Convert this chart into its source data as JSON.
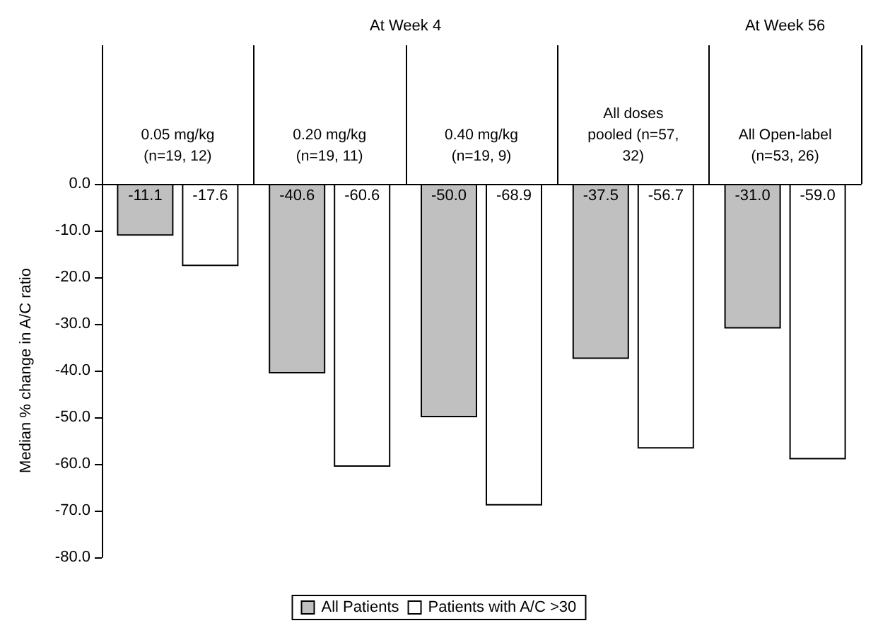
{
  "chart_data": {
    "type": "bar",
    "ylabel": "Median % change in A/C ratio",
    "annotations": [
      "At Week 4",
      "At Week 56"
    ],
    "categories": [
      "0.05 mg/kg\n(n=19, 12)",
      "0.20 mg/kg\n(n=19, 11)",
      "0.40 mg/kg\n(n=19, 9)",
      "All doses\npooled (n=57,\n32)",
      "All Open-label\n(n=53, 26)"
    ],
    "series": [
      {
        "name": "All Patients",
        "color": "#c0c0c0",
        "values": [
          -11.1,
          -40.6,
          -50.0,
          -37.5,
          -31.0
        ],
        "value_labels": [
          "-11.1",
          "-40.6",
          "-50.0",
          "-37.5",
          "-31.0"
        ]
      },
      {
        "name": "Patients with A/C >30",
        "color": "#ffffff",
        "values": [
          -17.6,
          -60.6,
          -68.9,
          -56.7,
          -59.0
        ],
        "value_labels": [
          "-17.6",
          "-60.6",
          "-68.9",
          "-56.7",
          "-59.0"
        ]
      }
    ],
    "ylim": [
      -80,
      0
    ],
    "yticks": [
      {
        "value": 0,
        "label": "0.0"
      },
      {
        "value": -10,
        "label": "-10.0"
      },
      {
        "value": -20,
        "label": "-20.0"
      },
      {
        "value": -30,
        "label": "-30.0"
      },
      {
        "value": -40,
        "label": "-40.0"
      },
      {
        "value": -50,
        "label": "-50.0"
      },
      {
        "value": -60,
        "label": "-60.0"
      },
      {
        "value": -70,
        "label": "-70.0"
      },
      {
        "value": -80,
        "label": "-80.0"
      }
    ],
    "grid": false,
    "legend": "bottom"
  }
}
